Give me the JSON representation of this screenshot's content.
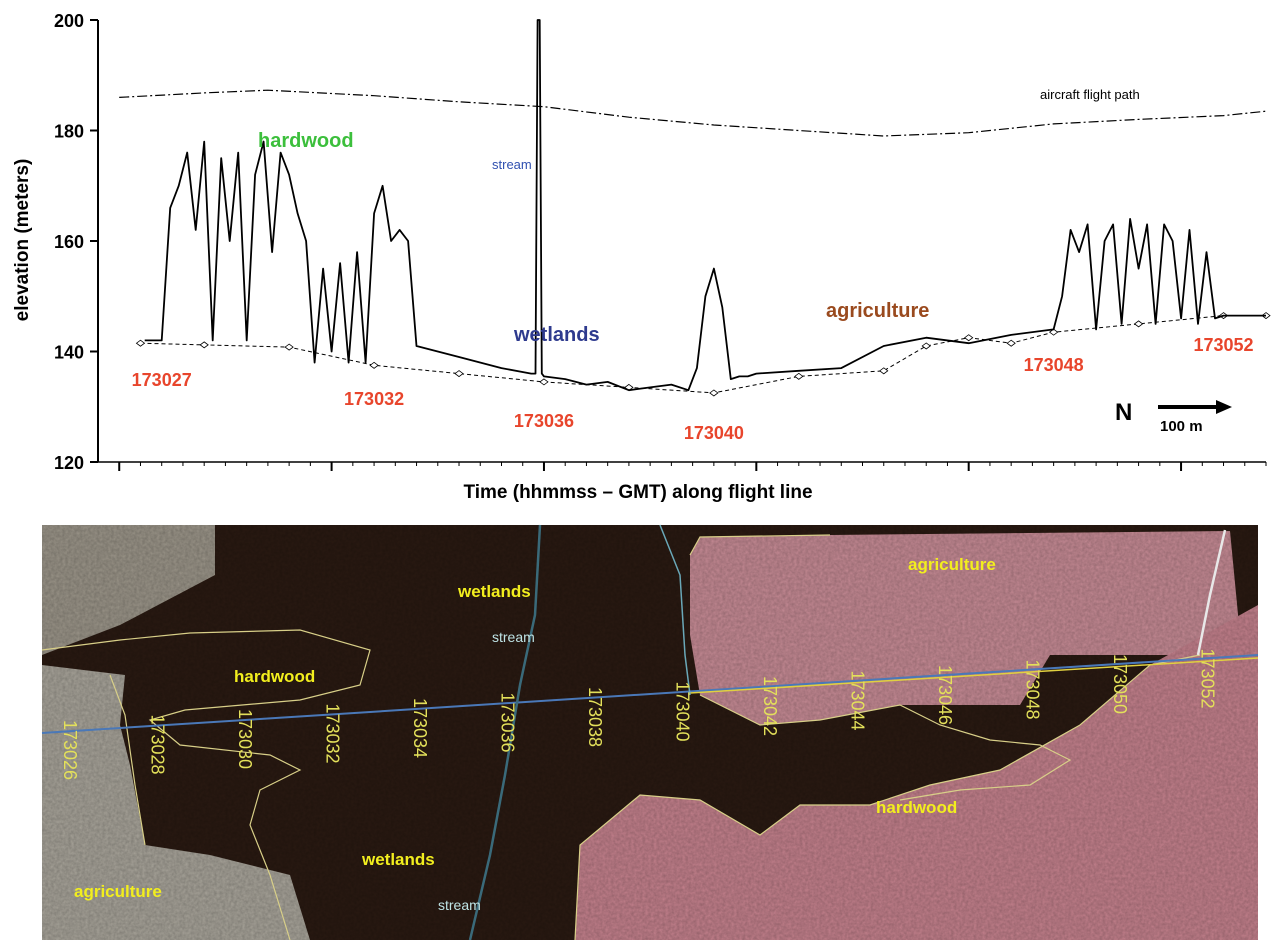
{
  "chart_data": {
    "type": "line",
    "xlabel": "Time (hhmmss – GMT) along flight line",
    "ylabel": "elevation (meters)",
    "ylim": [
      120,
      200
    ],
    "yticks": [
      120,
      140,
      160,
      180,
      200
    ],
    "xlim": [
      173025.5,
      173053
    ],
    "grid": false,
    "labels": {
      "flight_path": "aircraft flight path",
      "hardwood": "hardwood",
      "stream": "stream",
      "wetlands": "wetlands",
      "agriculture": "agriculture",
      "north": "N",
      "scale": "100 m"
    },
    "time_labels": [
      {
        "text": "173027",
        "t": 173027
      },
      {
        "text": "173032",
        "t": 173032
      },
      {
        "text": "173036",
        "t": 173036
      },
      {
        "text": "173040",
        "t": 173040
      },
      {
        "text": "173048",
        "t": 173048
      },
      {
        "text": "173052",
        "t": 173052
      }
    ],
    "series": [
      {
        "name": "aircraft flight path",
        "style": "dashdot",
        "x": [
          173026,
          173028,
          173029.5,
          173032,
          173034,
          173036,
          173038,
          173040,
          173042,
          173044,
          173046,
          173048,
          173050,
          173052,
          173053
        ],
        "y": [
          186,
          186.8,
          187.3,
          186.3,
          185.2,
          184.3,
          182.4,
          181,
          180,
          179,
          179.6,
          181.2,
          182,
          182.7,
          183.5
        ]
      },
      {
        "name": "ground",
        "style": "dashed",
        "x": [
          173026.5,
          173028,
          173030,
          173032,
          173034,
          173036,
          173038,
          173040,
          173042,
          173044,
          173045,
          173046,
          173047,
          173048,
          173050,
          173052,
          173053
        ],
        "y": [
          141.5,
          141.2,
          140.8,
          137.5,
          136,
          134.5,
          133.5,
          132.5,
          135.5,
          136.5,
          141,
          142.5,
          141.5,
          143.5,
          145,
          146.5,
          146.5
        ]
      },
      {
        "name": "canopy",
        "style": "solid",
        "x": [
          173026.6,
          173027,
          173027.2,
          173027.4,
          173027.6,
          173027.8,
          173028,
          173028.2,
          173028.4,
          173028.6,
          173028.8,
          173029,
          173029.2,
          173029.4,
          173029.6,
          173029.8,
          173030,
          173030.2,
          173030.4,
          173030.6,
          173030.8,
          173031,
          173031.2,
          173031.4,
          173031.6,
          173031.8,
          173032,
          173032.2,
          173032.4,
          173032.6,
          173032.8,
          173033,
          173034,
          173035,
          173035.7,
          173035.8,
          173035.85,
          173035.9,
          173035.95,
          173036,
          173036.5,
          173037,
          173037.5,
          173038,
          173038.5,
          173039,
          173039.4,
          173039.6,
          173039.8,
          173040,
          173040.2,
          173040.4,
          173040.6,
          173040.8,
          173041,
          173042,
          173043,
          173044,
          173045,
          173046,
          173047,
          173048,
          173048.2,
          173048.4,
          173048.6,
          173048.8,
          173049,
          173049.2,
          173049.4,
          173049.6,
          173049.8,
          173050,
          173050.2,
          173050.4,
          173050.6,
          173050.8,
          173051,
          173051.2,
          173051.4,
          173051.6,
          173051.8,
          173052,
          173052.5,
          173053
        ],
        "y": [
          142,
          142,
          166,
          170,
          176,
          162,
          178,
          142,
          175,
          160,
          176,
          142,
          172,
          178,
          158,
          176,
          172,
          165,
          160,
          138,
          155,
          140,
          156,
          138,
          158,
          138,
          165,
          170,
          160,
          162,
          160,
          141,
          139,
          137,
          136,
          136,
          200,
          200,
          136,
          135.5,
          135,
          134,
          134.5,
          133,
          133.5,
          134,
          133,
          137,
          150,
          155,
          148,
          135,
          135.5,
          135.5,
          136,
          136.5,
          137,
          141,
          142.5,
          141.5,
          143,
          144,
          150,
          162,
          158,
          163,
          144,
          160,
          163,
          145,
          164,
          155,
          163,
          145,
          163,
          160,
          146,
          162,
          145,
          158,
          146,
          146.5,
          146.5,
          146.5
        ]
      }
    ]
  },
  "map": {
    "labels": {
      "wetlands_top": "wetlands",
      "stream_top": "stream",
      "hardwood_left": "hardwood",
      "agriculture_top": "agriculture",
      "hardwood_right": "hardwood",
      "wetlands_bottom": "wetlands",
      "stream_bottom": "stream",
      "agriculture_bottom": "agriculture"
    },
    "times": [
      "173026",
      "173028",
      "173030",
      "173032",
      "173034",
      "173036",
      "173038",
      "173040",
      "173042",
      "173044",
      "173046",
      "173048",
      "173050",
      "173052"
    ]
  },
  "colors": {
    "time_label": "#e8452c",
    "hardwood_label": "#3cbf3c",
    "stream_label": "#3050b0",
    "wetlands_label": "#2e3a8e",
    "agriculture_label": "#9a4a1e",
    "map_label": "#f2ee1e",
    "map_time": "#e3e05a"
  }
}
